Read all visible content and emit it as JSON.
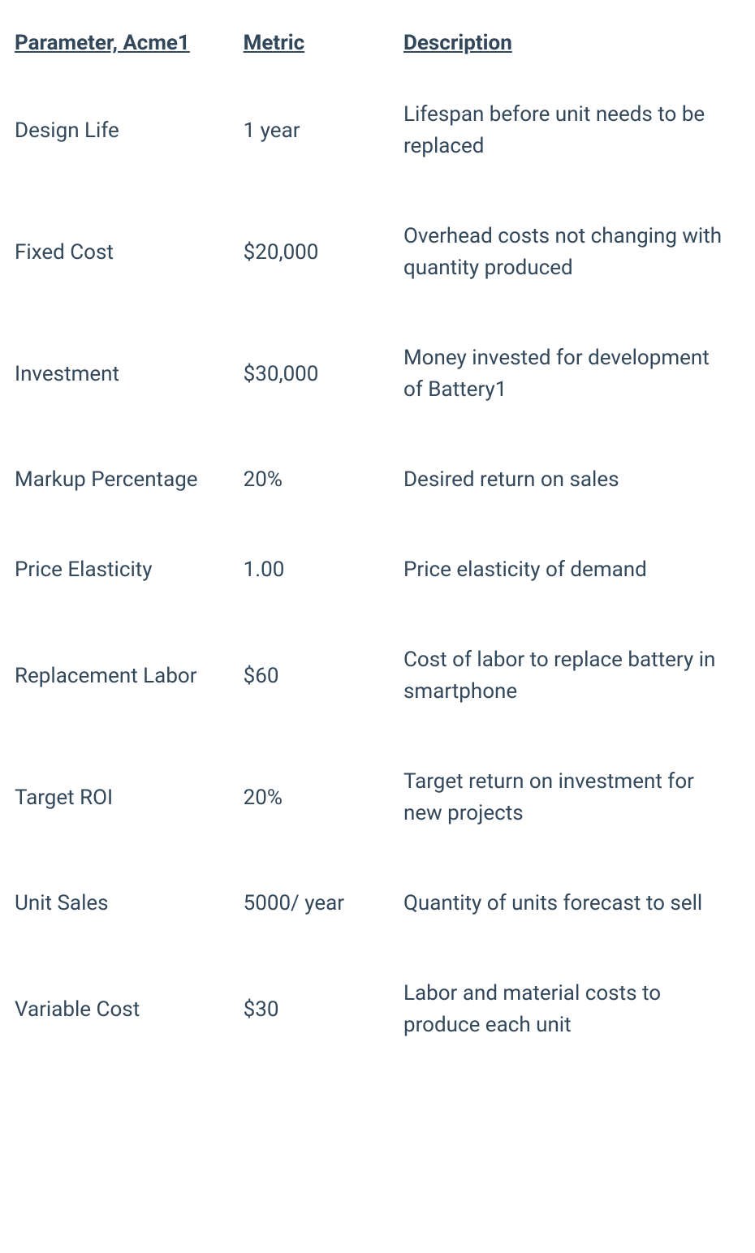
{
  "table": {
    "columns": [
      "Parameter, Acme1",
      "Metric",
      "Description"
    ],
    "column_widths_pct": [
      31.5,
      18.5,
      50
    ],
    "header_fontsize": 26,
    "header_fontweight": 700,
    "header_underline": true,
    "cell_fontsize": 26,
    "cell_fontweight": 400,
    "text_color": "#33475b",
    "background_color": "#ffffff",
    "rows": [
      {
        "parameter": "Design Life",
        "metric": "1 year",
        "description": "Lifespan before unit needs to be replaced"
      },
      {
        "parameter": "Fixed Cost",
        "metric": "$20,000",
        "description": "Overhead costs not changing with quantity produced"
      },
      {
        "parameter": "Investment",
        "metric": "$30,000",
        "description": "Money invested for development of Battery1"
      },
      {
        "parameter": "Markup Percentage",
        "metric": "20%",
        "description": "Desired return on sales"
      },
      {
        "parameter": "Price Elasticity",
        "metric": "1.00",
        "description": "Price elasticity of demand"
      },
      {
        "parameter": "Replacement Labor",
        "metric": "$60",
        "description": "Cost of labor to replace battery in smartphone"
      },
      {
        "parameter": "Target ROI",
        "metric": "20%",
        "description": "Target return on investment for new projects"
      },
      {
        "parameter": "Unit Sales",
        "metric": "5000/ year",
        "description": "Quantity of units forecast to sell"
      },
      {
        "parameter": "Variable Cost",
        "metric": "$30",
        "description": "Labor and material costs to produce each unit"
      }
    ]
  }
}
